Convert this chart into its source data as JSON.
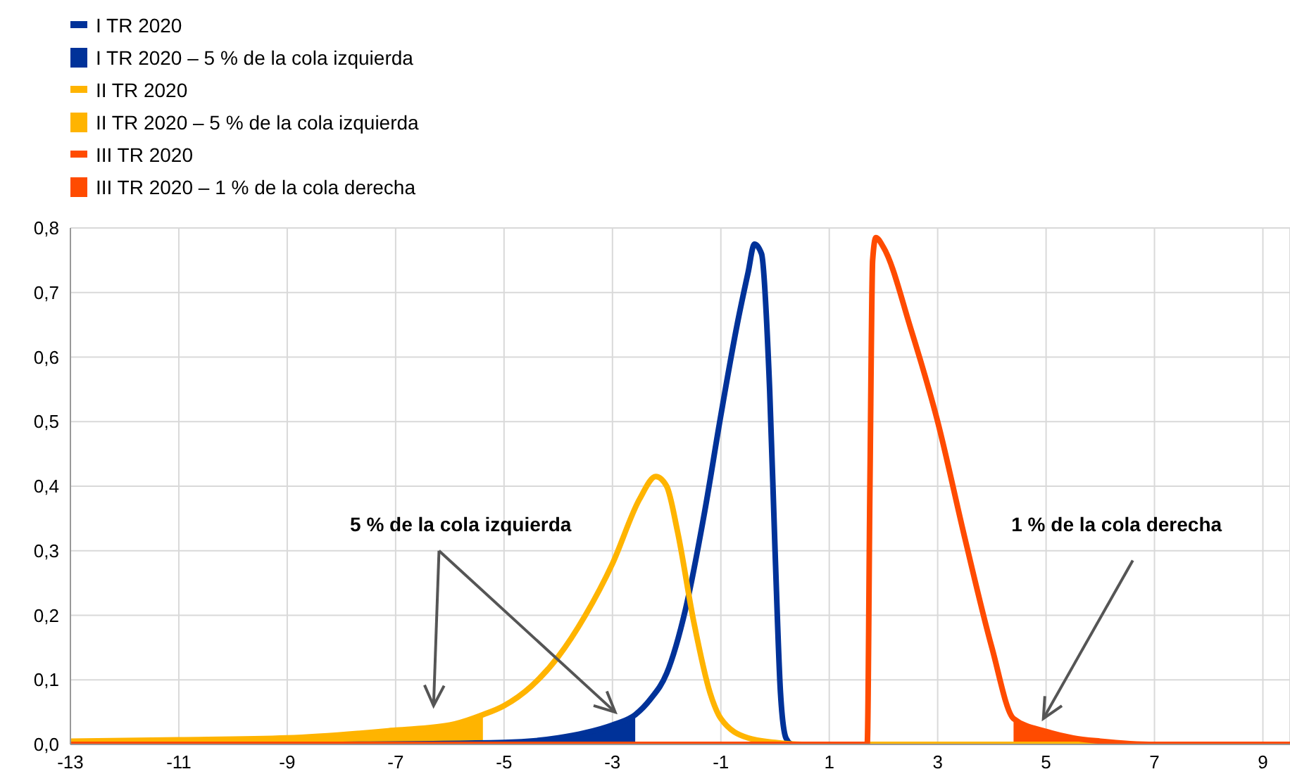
{
  "chart_data": {
    "type": "line",
    "xlim": [
      -13,
      9.5
    ],
    "xticks": [
      -13,
      -11,
      -9,
      -7,
      -5,
      -3,
      -1,
      1,
      3,
      5,
      7,
      9
    ],
    "ylim": [
      0,
      0.8
    ],
    "yticks": [
      {
        "value": 0,
        "label": "0,0"
      },
      {
        "value": 0.1,
        "label": "0,1"
      },
      {
        "value": 0.2,
        "label": "0,2"
      },
      {
        "value": 0.3,
        "label": "0,3"
      },
      {
        "value": 0.4,
        "label": "0,4"
      },
      {
        "value": 0.5,
        "label": "0,5"
      },
      {
        "value": 0.6,
        "label": "0,6"
      },
      {
        "value": 0.7,
        "label": "0,7"
      },
      {
        "value": 0.8,
        "label": "0,8"
      }
    ],
    "grid": true,
    "legend": "top left",
    "marker": "none",
    "line_style": "solid",
    "annotations": [
      "5 % de la cola izquierda",
      "1 % de la cola derecha"
    ],
    "series": [
      {
        "name": "I TR 2020",
        "color": "#003299",
        "x": [
          -8,
          -5,
          -4,
          -3.5,
          -3,
          -2.58,
          -2.3,
          -2,
          -1.65,
          -1.3,
          -1,
          -0.7,
          -0.5,
          -0.38,
          -0.25,
          -0.1,
          0,
          0.1,
          0.2,
          0.3
        ],
        "values": [
          0,
          0.003,
          0.01,
          0.018,
          0.03,
          0.046,
          0.07,
          0.11,
          0.21,
          0.36,
          0.51,
          0.65,
          0.73,
          0.775,
          0.76,
          0.55,
          0.3,
          0.08,
          0.01,
          0
        ]
      },
      {
        "name": "I TR 2020 – 5 % de la cola izquierda",
        "type": "area",
        "color": "#003299",
        "x": [
          -8,
          -5,
          -4,
          -3.5,
          -3,
          -2.58
        ],
        "values": [
          0,
          0.003,
          0.01,
          0.018,
          0.03,
          0.046
        ]
      },
      {
        "name": "II TR 2020",
        "color": "#ffb400",
        "x": [
          -13,
          -11,
          -9,
          -7,
          -6,
          -5.39,
          -5,
          -4.5,
          -4,
          -3.5,
          -3,
          -2.5,
          -2.2,
          -2,
          -1.8,
          -1.5,
          -1.2,
          -1,
          -0.5,
          0,
          0.5,
          9.5
        ],
        "values": [
          0.005,
          0.007,
          0.01,
          0.022,
          0.03,
          0.046,
          0.06,
          0.09,
          0.136,
          0.2,
          0.28,
          0.38,
          0.415,
          0.4,
          0.33,
          0.19,
          0.08,
          0.04,
          0.01,
          0.003,
          0,
          0
        ]
      },
      {
        "name": "II TR 2020 – 5 % de la cola izquierda",
        "type": "area",
        "color": "#ffb400",
        "x": [
          -13,
          -11,
          -9,
          -7,
          -6,
          -5.39
        ],
        "values": [
          0.005,
          0.007,
          0.01,
          0.022,
          0.03,
          0.046
        ]
      },
      {
        "name": "III TR 2020",
        "color": "#ff4b00",
        "x": [
          -13,
          1.7,
          1.75,
          1.8,
          1.86,
          2,
          2.5,
          3,
          3.5,
          4,
          4.4,
          5,
          5.5,
          6,
          7,
          9.5
        ],
        "values": [
          0,
          0,
          0.4,
          0.75,
          0.785,
          0.77,
          0.645,
          0.5,
          0.32,
          0.15,
          0.04,
          0.02,
          0.01,
          0.005,
          0,
          0
        ]
      },
      {
        "name": "III TR 2020 – 1 % de la cola derecha",
        "type": "area",
        "color": "#ff4b00",
        "x": [
          4.4,
          5,
          5.5,
          6,
          7,
          9.5
        ],
        "values": [
          0.04,
          0.02,
          0.01,
          0.005,
          0,
          0
        ]
      }
    ]
  }
}
